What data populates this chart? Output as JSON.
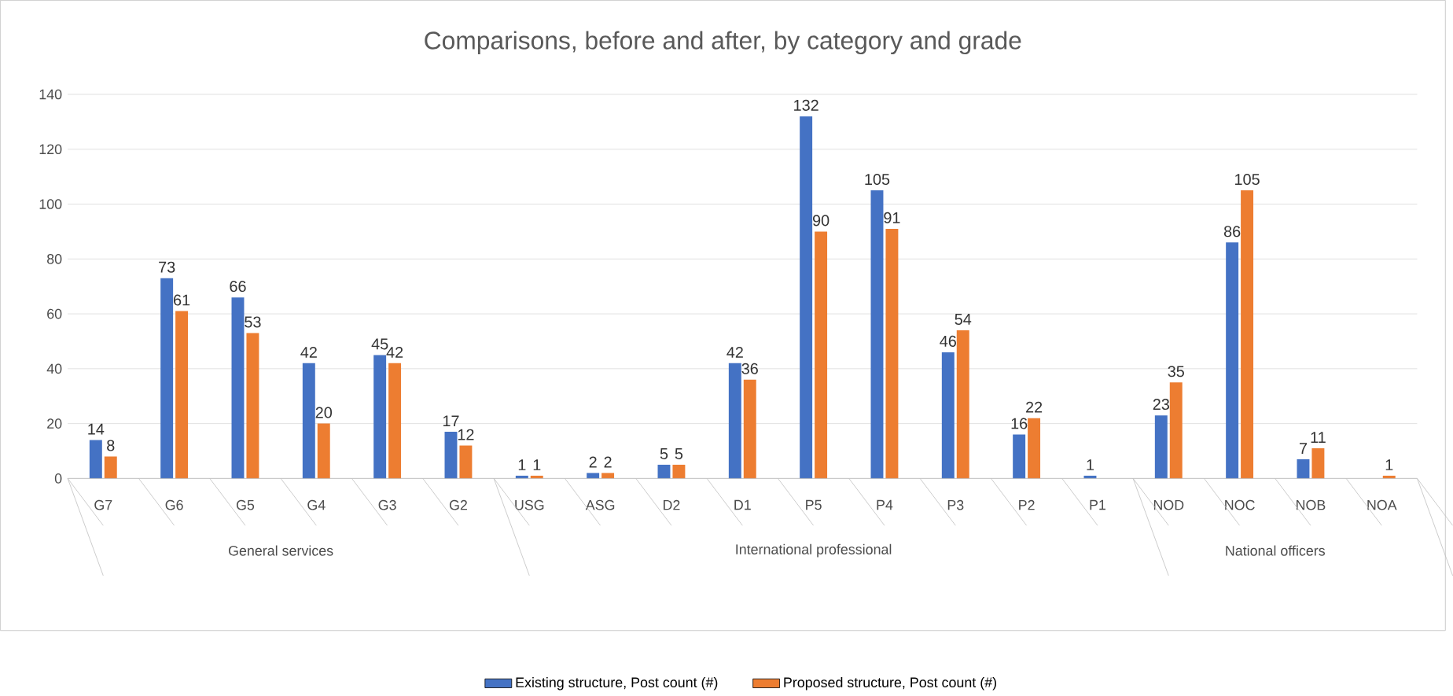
{
  "chart_data": {
    "type": "bar",
    "title": "Comparisons, before and after, by category and grade",
    "categories": [
      "G7",
      "G6",
      "G5",
      "G4",
      "G3",
      "G2",
      "USG",
      "ASG",
      "D2",
      "D1",
      "P5",
      "P4",
      "P3",
      "P2",
      "P1",
      "NOD",
      "NOC",
      "NOB",
      "NOA"
    ],
    "series": [
      {
        "name": "Existing structure, Post count (#)",
        "color": "#4472c4",
        "values": [
          14,
          73,
          66,
          42,
          45,
          17,
          1,
          2,
          5,
          42,
          132,
          105,
          46,
          16,
          1,
          23,
          86,
          7,
          null
        ]
      },
      {
        "name": "Proposed structure, Post count (#)",
        "color": "#ed7d31",
        "values": [
          8,
          61,
          53,
          20,
          42,
          12,
          1,
          2,
          5,
          36,
          90,
          91,
          54,
          22,
          null,
          35,
          105,
          11,
          1
        ]
      }
    ],
    "annotations": [
      "General services",
      "International professional",
      "National officers"
    ],
    "ylim": [
      0,
      140
    ],
    "yticks": [
      0,
      20,
      40,
      60,
      80,
      100,
      120,
      140
    ],
    "grid": "y",
    "legend": "bottom",
    "data_labels": true
  }
}
